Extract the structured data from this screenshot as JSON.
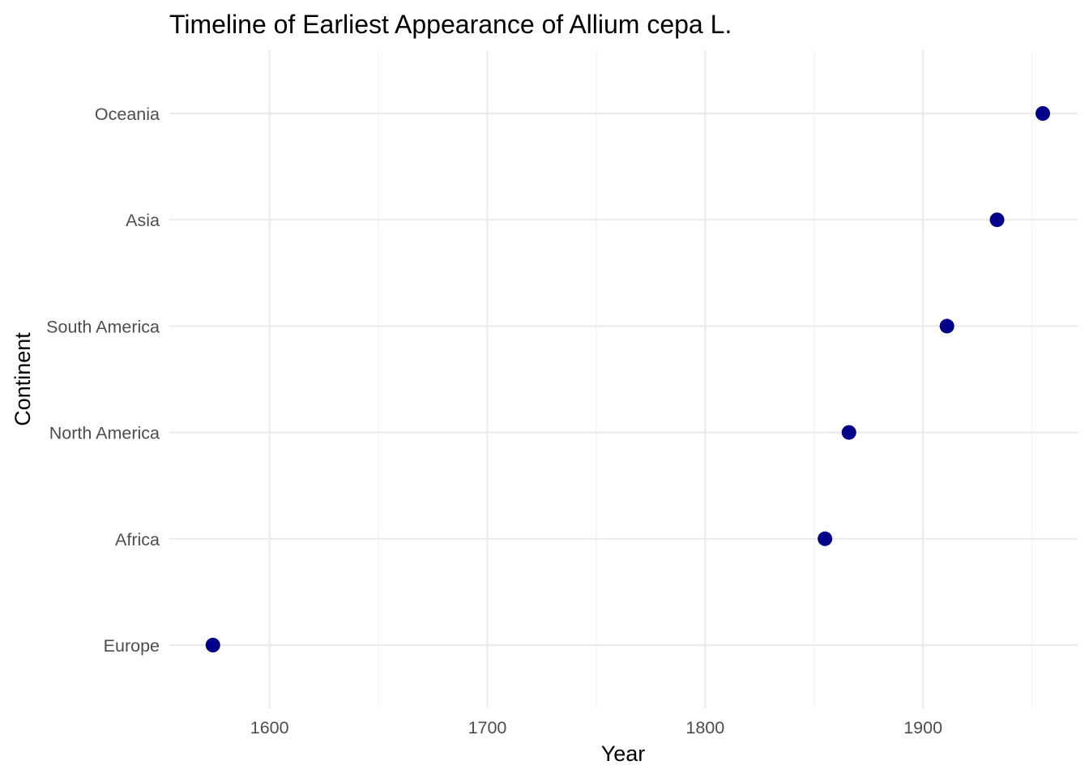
{
  "chart_data": {
    "type": "scatter",
    "title": "Timeline of Earliest Appearance of Allium cepa L.",
    "xlabel": "Year",
    "ylabel": "Continent",
    "xlim": [
      1554,
      1971
    ],
    "x_ticks": [
      1600,
      1700,
      1800,
      1900
    ],
    "x_minor_ticks": [
      1650,
      1750,
      1850,
      1950
    ],
    "categories": [
      "Europe",
      "Africa",
      "North America",
      "South America",
      "Asia",
      "Oceania"
    ],
    "series": [
      {
        "points": [
          {
            "category": "Europe",
            "x": 1574
          },
          {
            "category": "Africa",
            "x": 1855
          },
          {
            "category": "North America",
            "x": 1866
          },
          {
            "category": "South America",
            "x": 1911
          },
          {
            "category": "Asia",
            "x": 1934
          },
          {
            "category": "Oceania",
            "x": 1955
          }
        ]
      }
    ],
    "point_color": "#00008b",
    "grid": true,
    "legend": "none"
  }
}
